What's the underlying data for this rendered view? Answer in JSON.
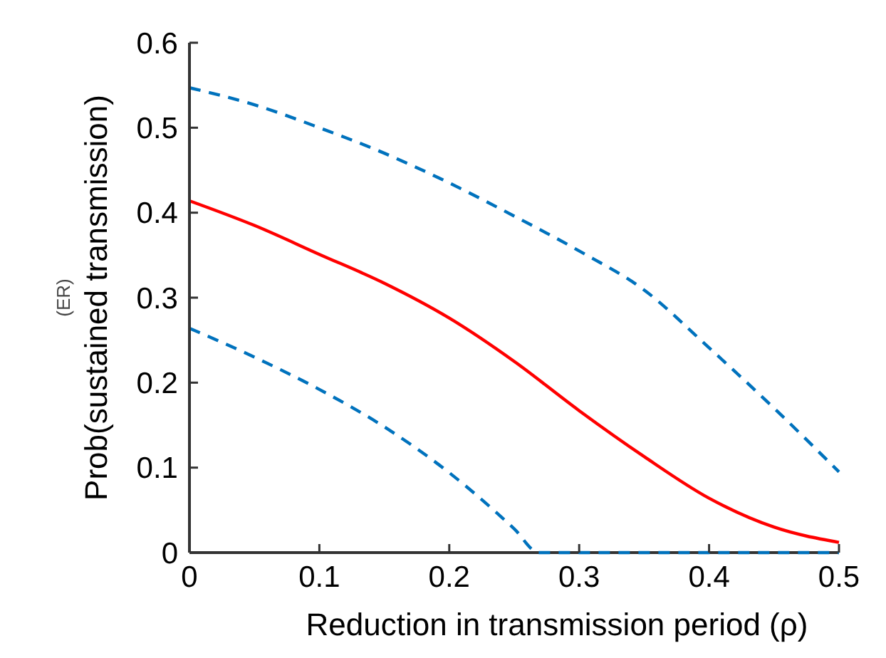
{
  "chart_data": {
    "type": "line",
    "xlabel": "Reduction in transmission period (ρ)",
    "ylabel": "Prob(sustained transmission)",
    "annotations": [
      "(ER)"
    ],
    "xlim": [
      0,
      0.5
    ],
    "ylim": [
      0,
      0.6
    ],
    "xticks": [
      0,
      0.1,
      0.2,
      0.3,
      0.4,
      0.5
    ],
    "yticks": [
      0,
      0.1,
      0.2,
      0.3,
      0.4,
      0.5,
      0.6
    ],
    "grid": false,
    "series": [
      {
        "color": "#0072bd",
        "line_style": "dashed",
        "x": [
          0,
          0.05,
          0.1,
          0.15,
          0.2,
          0.25,
          0.3,
          0.35,
          0.4,
          0.45,
          0.5
        ],
        "values": [
          0.547,
          0.527,
          0.5,
          0.47,
          0.435,
          0.396,
          0.355,
          0.309,
          0.241,
          0.17,
          0.095
        ]
      },
      {
        "color": "#ff0000",
        "line_style": "solid",
        "x": [
          0,
          0.05,
          0.1,
          0.15,
          0.2,
          0.25,
          0.3,
          0.35,
          0.4,
          0.45,
          0.5
        ],
        "values": [
          0.414,
          0.385,
          0.351,
          0.317,
          0.276,
          0.225,
          0.167,
          0.113,
          0.064,
          0.03,
          0.012
        ]
      },
      {
        "color": "#0072bd",
        "line_style": "dashed",
        "x": [
          0,
          0.05,
          0.1,
          0.15,
          0.2,
          0.25,
          0.269,
          0.3,
          0.35,
          0.4,
          0.45,
          0.5
        ],
        "values": [
          0.264,
          0.23,
          0.192,
          0.148,
          0.094,
          0.028,
          0,
          0,
          0,
          0,
          0,
          0
        ]
      }
    ]
  }
}
